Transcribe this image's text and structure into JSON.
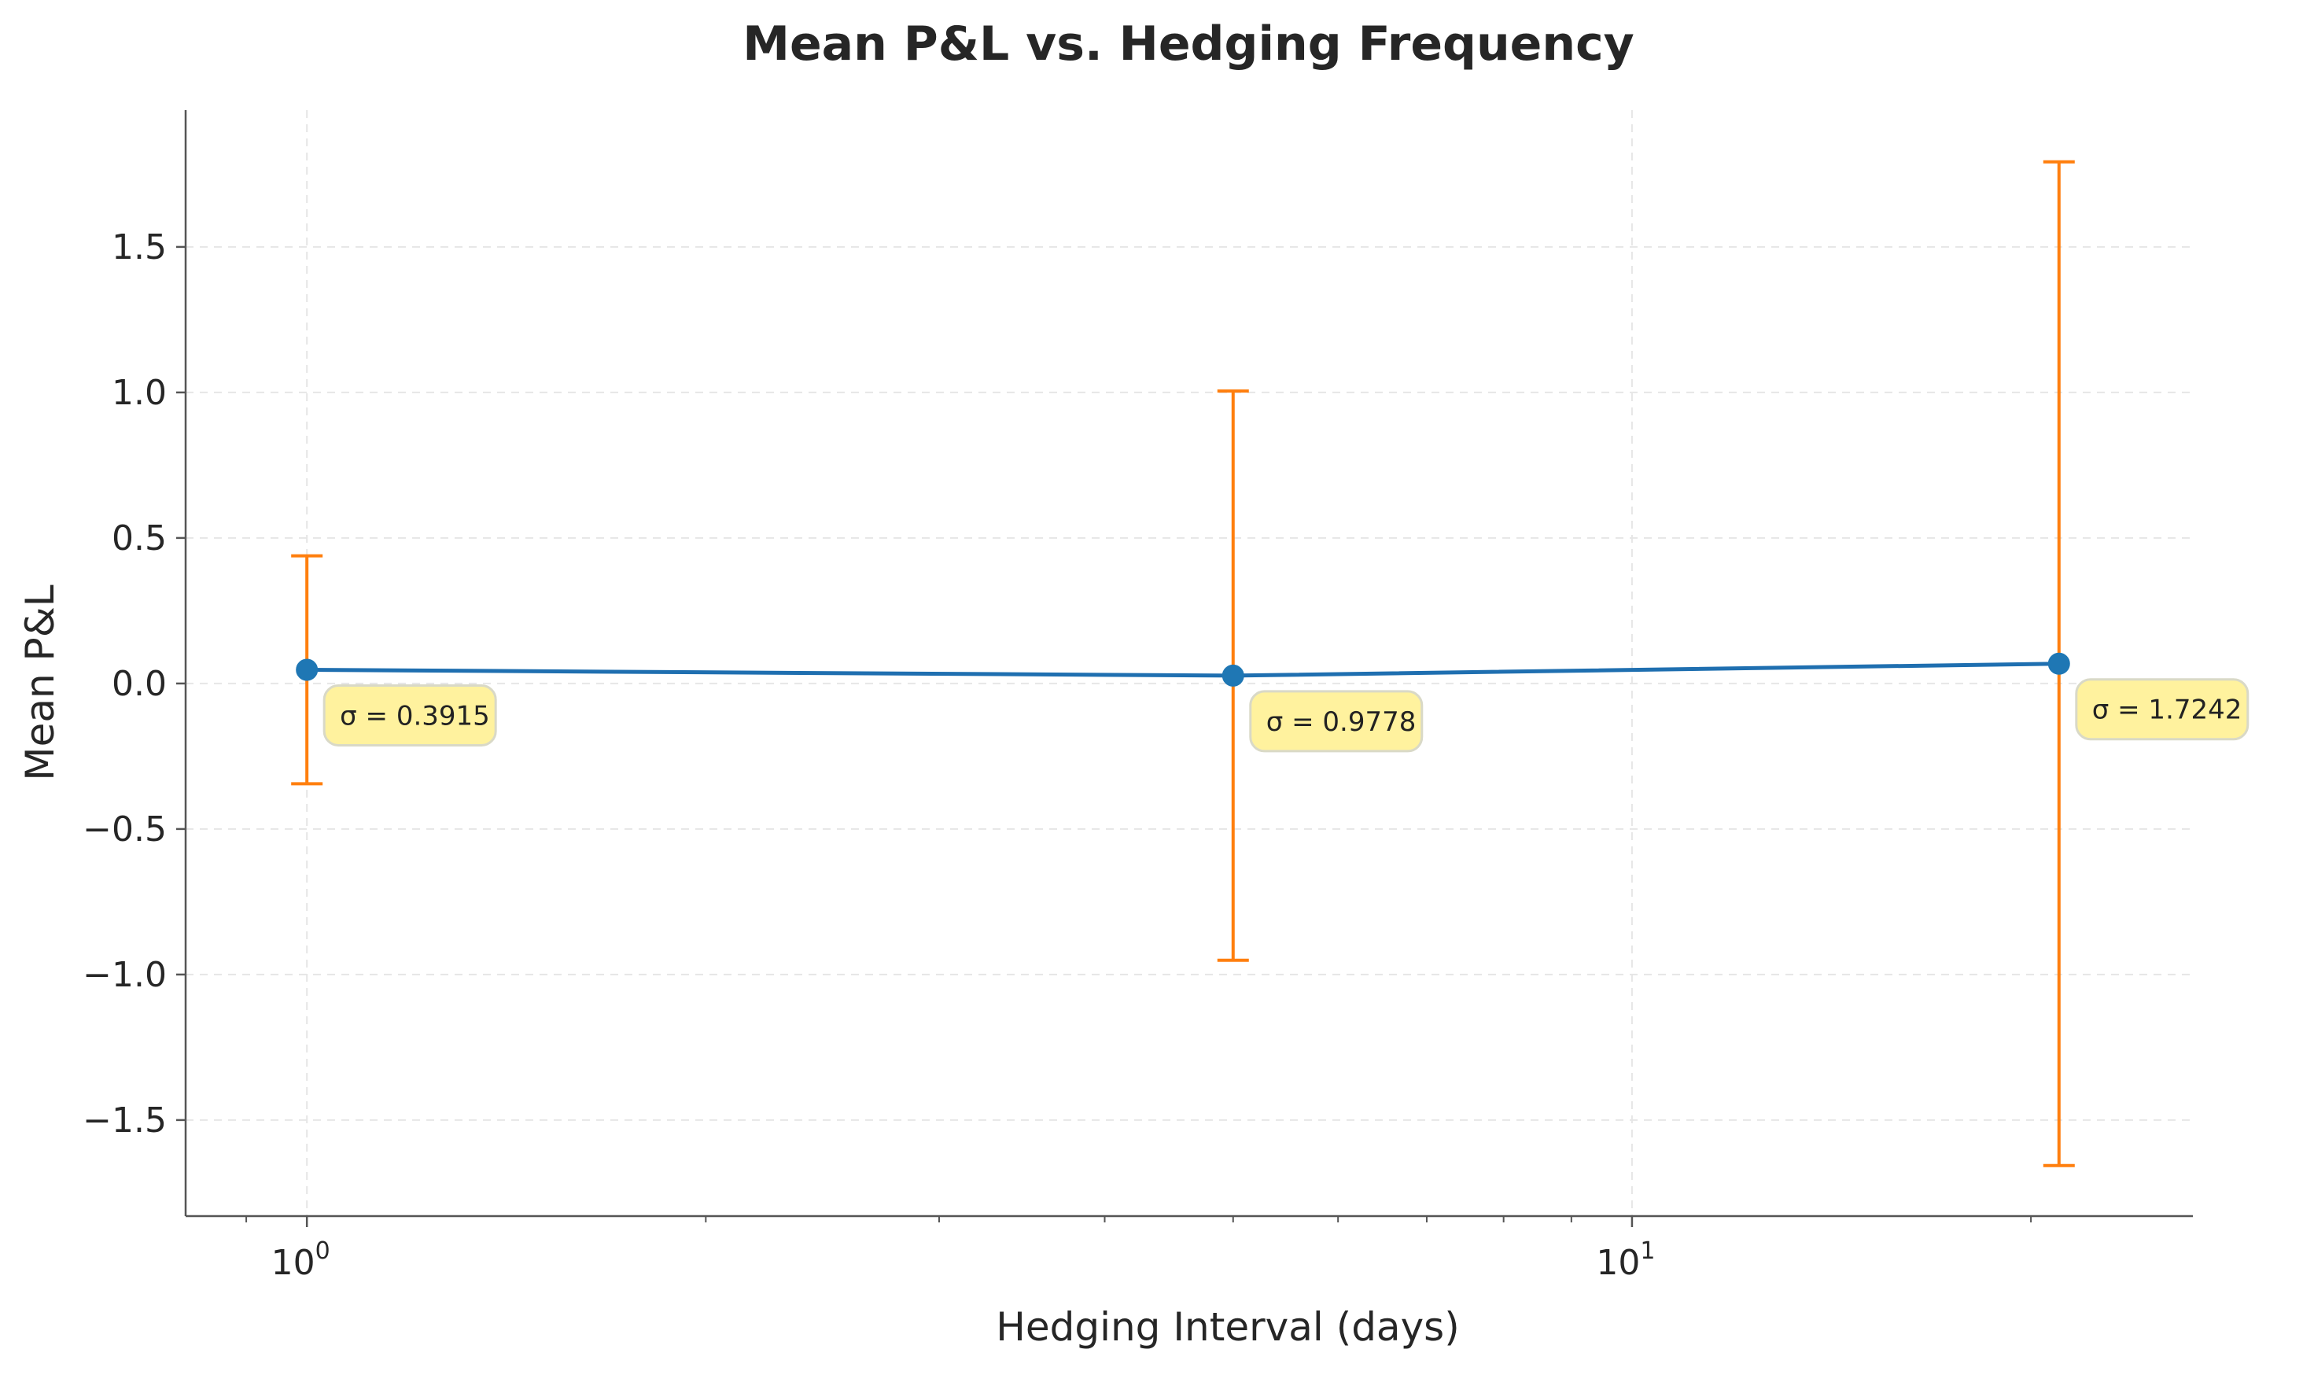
{
  "chart_data": {
    "type": "line",
    "title": "Mean P&L vs. Hedging Frequency",
    "xlabel": "Hedging Interval (days)",
    "ylabel": "Mean P&L",
    "xscale": "log",
    "xlim": [
      0.81,
      26.5
    ],
    "ylim": [
      -1.83,
      1.97
    ],
    "grid": true,
    "x_ticks": [
      {
        "value": 1,
        "base": "10",
        "exp": "0"
      },
      {
        "value": 10,
        "base": "10",
        "exp": "1"
      }
    ],
    "y_ticks": [
      {
        "value": 1.5,
        "label": "1.5"
      },
      {
        "value": 1.0,
        "label": "1.0"
      },
      {
        "value": 0.5,
        "label": "0.5"
      },
      {
        "value": 0.0,
        "label": "0.0"
      },
      {
        "value": -0.5,
        "label": "−0.5"
      },
      {
        "value": -1.0,
        "label": "−1.0"
      },
      {
        "value": -1.5,
        "label": "−1.5"
      }
    ],
    "series": [
      {
        "x": [
          1,
          5,
          21
        ],
        "y": [
          0.047,
          0.027,
          0.068
        ],
        "error": [
          0.3915,
          0.9778,
          1.7242
        ],
        "annotations": [
          "σ = 0.3915",
          "σ = 0.9778",
          "σ = 1.7242"
        ]
      }
    ],
    "colors": {
      "line": "#1f6fb0",
      "marker": "#1f77b4",
      "errorbar": "#ff7f0e",
      "annotation_fill": "#fff29e",
      "annotation_stroke": "#d9d9c7",
      "grid": "#e6e6e6",
      "axis": "#555555"
    }
  }
}
